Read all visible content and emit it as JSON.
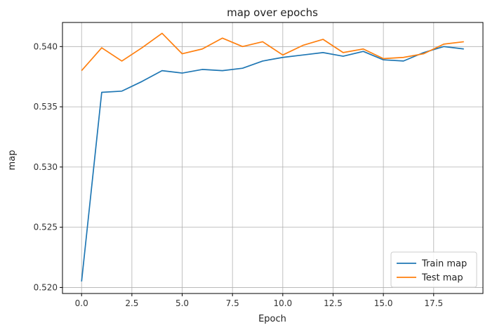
{
  "chart_data": {
    "type": "line",
    "title": "map over epochs",
    "xlabel": "Epoch",
    "ylabel": "map",
    "xlim": [
      -0.95,
      19.95
    ],
    "ylim": [
      0.5195,
      0.542
    ],
    "xticks": [
      0.0,
      2.5,
      5.0,
      7.5,
      10.0,
      12.5,
      15.0,
      17.5
    ],
    "xtick_labels": [
      "0.0",
      "2.5",
      "5.0",
      "7.5",
      "10.0",
      "12.5",
      "15.0",
      "17.5"
    ],
    "yticks": [
      0.52,
      0.525,
      0.53,
      0.535,
      0.54
    ],
    "ytick_labels": [
      "0.520",
      "0.525",
      "0.530",
      "0.535",
      "0.540"
    ],
    "grid": true,
    "legend_position": "bottom-right",
    "x": [
      0,
      1,
      2,
      3,
      4,
      5,
      6,
      7,
      8,
      9,
      10,
      11,
      12,
      13,
      14,
      15,
      16,
      17,
      18,
      19
    ],
    "series": [
      {
        "name": "Train map",
        "color": "#1f77b4",
        "values": [
          0.5205,
          0.5362,
          0.5363,
          0.5371,
          0.538,
          0.5378,
          0.5381,
          0.538,
          0.5382,
          0.5388,
          0.5391,
          0.5393,
          0.5395,
          0.5392,
          0.5396,
          0.5389,
          0.5388,
          0.5395,
          0.54,
          0.5398
        ]
      },
      {
        "name": "Test map",
        "color": "#ff7f0e",
        "values": [
          0.538,
          0.5399,
          0.5388,
          0.5399,
          0.5411,
          0.5394,
          0.5398,
          0.5407,
          0.54,
          0.5404,
          0.5393,
          0.5401,
          0.5406,
          0.5395,
          0.5398,
          0.539,
          0.5391,
          0.5394,
          0.5402,
          0.5404
        ]
      }
    ]
  }
}
